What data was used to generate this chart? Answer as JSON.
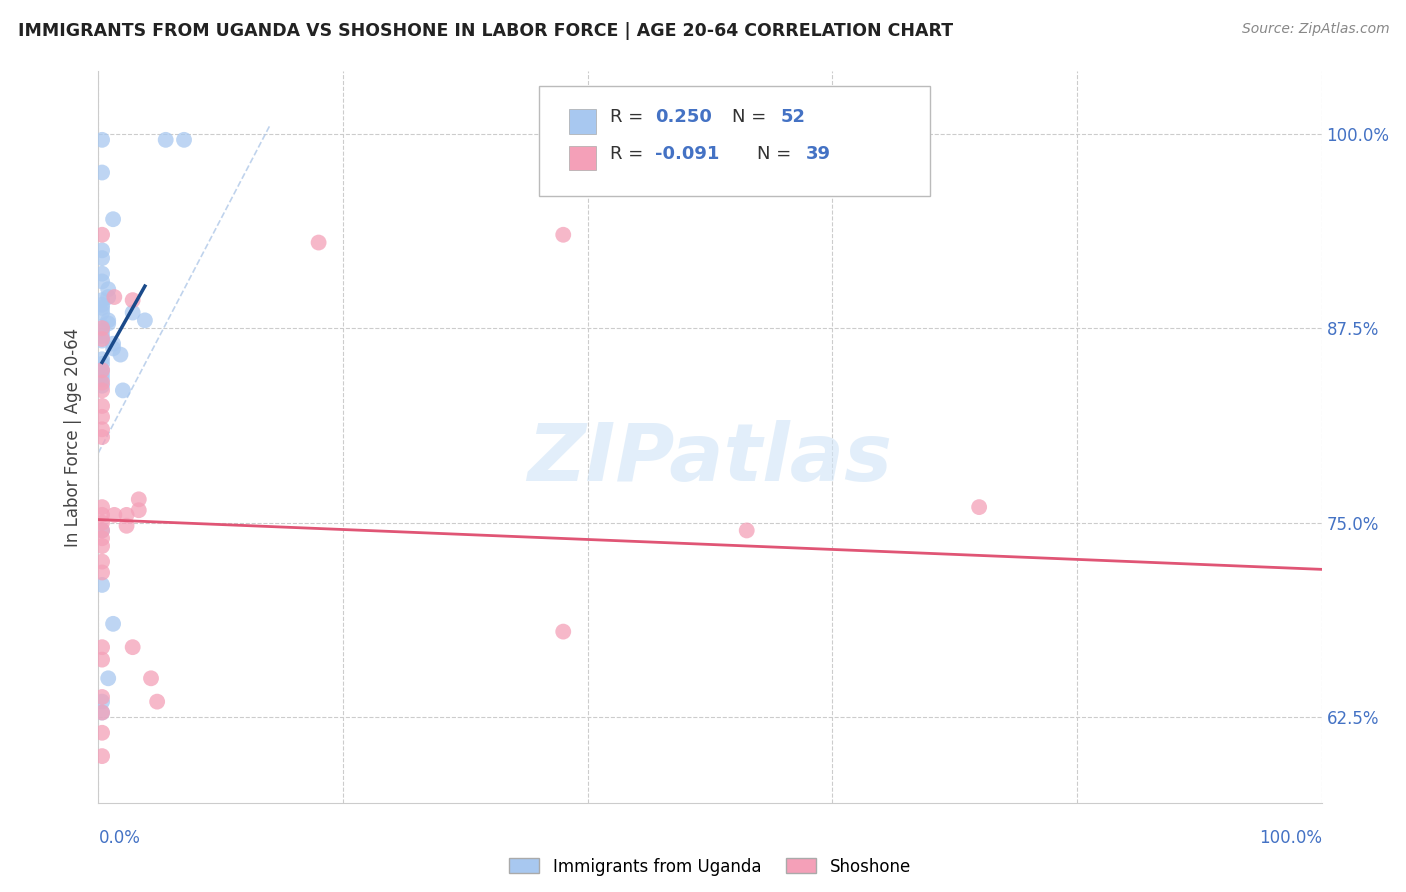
{
  "title": "IMMIGRANTS FROM UGANDA VS SHOSHONE IN LABOR FORCE | AGE 20-64 CORRELATION CHART",
  "source": "Source: ZipAtlas.com",
  "ylabel": "In Labor Force | Age 20-64",
  "xlim": [
    0.0,
    1.0
  ],
  "ylim": [
    0.57,
    1.04
  ],
  "yticks": [
    0.625,
    0.75,
    0.875,
    1.0
  ],
  "ytick_labels": [
    "62.5%",
    "75.0%",
    "87.5%",
    "100.0%"
  ],
  "xticks": [
    0.0,
    0.2,
    0.4,
    0.6,
    0.8,
    1.0
  ],
  "blue_color": "#a8c8f0",
  "pink_color": "#f4a0b8",
  "blue_line_color": "#1a4a8a",
  "pink_line_color": "#e05575",
  "dashed_line_color": "#b0c8e8",
  "blue_scatter": [
    [
      0.003,
      0.996
    ],
    [
      0.003,
      0.975
    ],
    [
      0.055,
      0.996
    ],
    [
      0.07,
      0.996
    ],
    [
      0.012,
      0.945
    ],
    [
      0.003,
      0.925
    ],
    [
      0.003,
      0.92
    ],
    [
      0.003,
      0.91
    ],
    [
      0.003,
      0.905
    ],
    [
      0.008,
      0.9
    ],
    [
      0.008,
      0.895
    ],
    [
      0.003,
      0.893
    ],
    [
      0.003,
      0.89
    ],
    [
      0.003,
      0.888
    ],
    [
      0.003,
      0.885
    ],
    [
      0.008,
      0.88
    ],
    [
      0.008,
      0.878
    ],
    [
      0.003,
      0.876
    ],
    [
      0.003,
      0.873
    ],
    [
      0.003,
      0.87
    ],
    [
      0.003,
      0.867
    ],
    [
      0.012,
      0.865
    ],
    [
      0.012,
      0.862
    ],
    [
      0.018,
      0.858
    ],
    [
      0.003,
      0.855
    ],
    [
      0.003,
      0.852
    ],
    [
      0.003,
      0.848
    ],
    [
      0.003,
      0.845
    ],
    [
      0.003,
      0.842
    ],
    [
      0.003,
      0.838
    ],
    [
      0.02,
      0.835
    ],
    [
      0.028,
      0.885
    ],
    [
      0.038,
      0.88
    ],
    [
      0.003,
      0.745
    ],
    [
      0.003,
      0.71
    ],
    [
      0.012,
      0.685
    ],
    [
      0.008,
      0.65
    ],
    [
      0.003,
      0.635
    ],
    [
      0.003,
      0.628
    ]
  ],
  "pink_scatter": [
    [
      0.003,
      0.935
    ],
    [
      0.18,
      0.93
    ],
    [
      0.013,
      0.895
    ],
    [
      0.003,
      0.875
    ],
    [
      0.003,
      0.868
    ],
    [
      0.003,
      0.848
    ],
    [
      0.003,
      0.84
    ],
    [
      0.003,
      0.835
    ],
    [
      0.003,
      0.825
    ],
    [
      0.003,
      0.818
    ],
    [
      0.003,
      0.81
    ],
    [
      0.003,
      0.805
    ],
    [
      0.003,
      0.76
    ],
    [
      0.003,
      0.755
    ],
    [
      0.003,
      0.75
    ],
    [
      0.003,
      0.745
    ],
    [
      0.003,
      0.74
    ],
    [
      0.003,
      0.735
    ],
    [
      0.003,
      0.725
    ],
    [
      0.003,
      0.718
    ],
    [
      0.023,
      0.755
    ],
    [
      0.023,
      0.748
    ],
    [
      0.013,
      0.755
    ],
    [
      0.38,
      0.935
    ],
    [
      0.028,
      0.893
    ],
    [
      0.033,
      0.765
    ],
    [
      0.033,
      0.758
    ],
    [
      0.028,
      0.67
    ],
    [
      0.043,
      0.65
    ],
    [
      0.38,
      0.68
    ],
    [
      0.003,
      0.67
    ],
    [
      0.003,
      0.662
    ],
    [
      0.003,
      0.638
    ],
    [
      0.003,
      0.628
    ],
    [
      0.003,
      0.615
    ],
    [
      0.003,
      0.6
    ],
    [
      0.048,
      0.635
    ],
    [
      0.53,
      0.745
    ],
    [
      0.72,
      0.76
    ]
  ],
  "blue_reg_line": [
    [
      0.003,
      0.038
    ],
    [
      0.853,
      0.902
    ]
  ],
  "pink_reg_line": [
    [
      0.0,
      1.0
    ],
    [
      0.752,
      0.72
    ]
  ],
  "dashed_line": [
    [
      0.0,
      0.14
    ],
    [
      0.795,
      1.005
    ]
  ],
  "watermark": "ZIPatlas",
  "background_color": "#ffffff",
  "grid_color": "#cccccc"
}
